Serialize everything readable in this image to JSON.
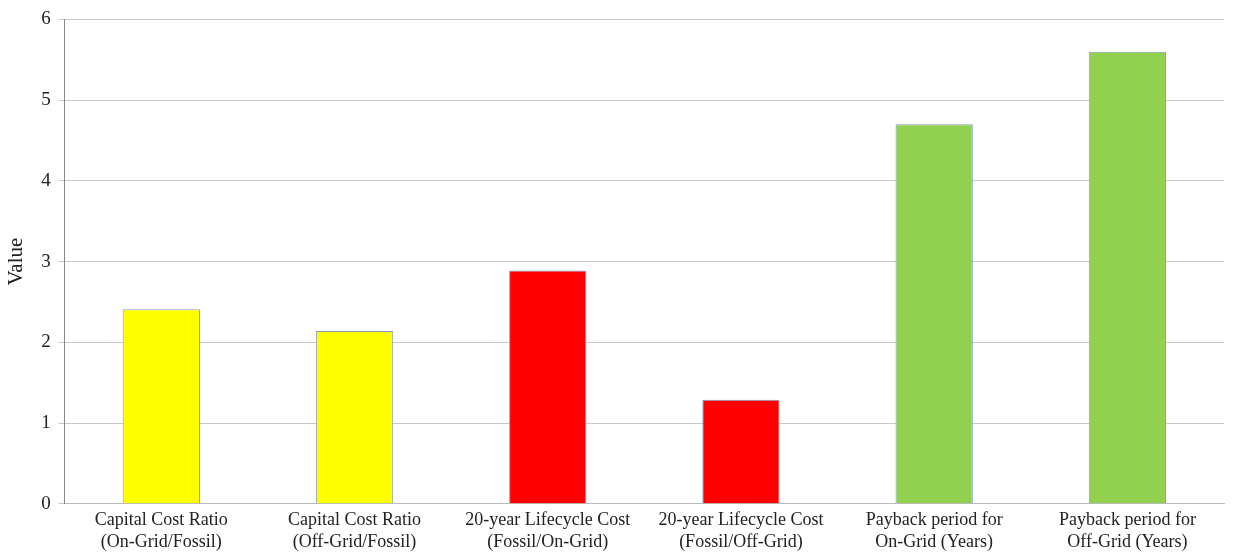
{
  "chart_data": {
    "type": "bar",
    "ylabel": "Value",
    "categories": [
      "Capital Cost Ratio (On-Grid/Fossil)",
      "Capital Cost Ratio (Off-Grid/Fossil)",
      "20-year Lifecycle Cost (Fossil/On-Grid)",
      "20-year Lifecycle Cost (Fossil/Off-Grid)",
      "Payback period for On-Grid (Years)",
      "Payback period for Off-Grid (Years)"
    ],
    "values": [
      2.41,
      2.14,
      2.89,
      1.29,
      4.7,
      5.6
    ],
    "colors": [
      "#ffff00",
      "#ffff00",
      "#ff0000",
      "#ff0000",
      "#92d050",
      "#92d050"
    ],
    "ylim": [
      0,
      6
    ],
    "yticks": [
      0,
      1,
      2,
      3,
      4,
      5,
      6
    ],
    "grid": "y",
    "legend": false
  }
}
